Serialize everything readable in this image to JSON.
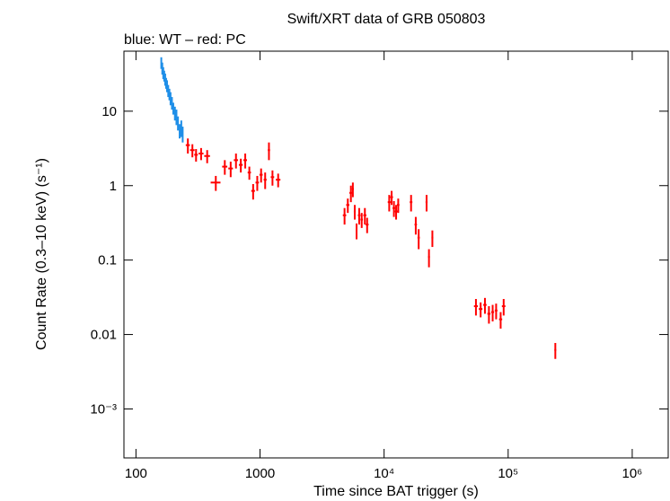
{
  "chart_data": {
    "type": "scatter",
    "title": "Swift/XRT data of GRB 050803",
    "subtitle": "blue: WT – red: PC",
    "x_label": "Time since BAT trigger (s)",
    "y_label": "Count Rate (0.3–10 keV) (s⁻¹)",
    "log_x": true,
    "log_y": true,
    "xlim": [
      80,
      1950000
    ],
    "ylim": [
      0.00022,
      64
    ],
    "xticks": [
      100,
      1000,
      {
        "value": 10000,
        "label": "10⁴"
      },
      {
        "value": 100000,
        "label": "10⁵"
      },
      {
        "value": 1000000,
        "label": "10⁶"
      }
    ],
    "yticks": [
      {
        "value": 0.001,
        "label": "10⁻³"
      },
      0.01,
      0.1,
      1,
      10
    ],
    "series": [
      {
        "name": "WT",
        "color": "#1f8fe8",
        "x": [
          160,
          163,
          166,
          169,
          172,
          175,
          178,
          182,
          186,
          190,
          195,
          200,
          206,
          212,
          218,
          225,
          232,
          238
        ],
        "values": [
          45,
          38,
          33,
          30,
          27,
          24,
          22,
          19,
          17,
          15,
          13,
          11,
          9.5,
          8.5,
          7,
          5.5,
          6,
          5
        ],
        "yerr": [
          8,
          7,
          6,
          5,
          5,
          4,
          4,
          3.5,
          3,
          3,
          2.5,
          2,
          2,
          2,
          1.5,
          1.2,
          1.5,
          1.2
        ]
      },
      {
        "name": "PC",
        "color": "#ff0000",
        "x": [
          262,
          285,
          305,
          335,
          375,
          440,
          520,
          580,
          640,
          700,
          760,
          820,
          880,
          950,
          1020,
          1100,
          1180,
          1260,
          1400,
          4800,
          5100,
          5400,
          5600,
          5800,
          6000,
          6300,
          6600,
          7000,
          7300,
          11000,
          11500,
          12000,
          12500,
          13000,
          16500,
          18000,
          19000,
          22000,
          23000,
          24500,
          55000,
          60000,
          65000,
          70000,
          75000,
          80000,
          87000,
          92000,
          240000
        ],
        "values": [
          3.5,
          3.0,
          2.6,
          2.7,
          2.5,
          1.1,
          1.8,
          1.7,
          2.2,
          1.9,
          2.2,
          1.5,
          0.85,
          1.1,
          1.4,
          1.2,
          3.0,
          1.3,
          1.2,
          0.4,
          0.55,
          0.8,
          0.9,
          0.45,
          0.25,
          0.4,
          0.35,
          0.4,
          0.3,
          0.6,
          0.7,
          0.5,
          0.45,
          0.55,
          0.6,
          0.3,
          0.2,
          0.6,
          0.11,
          0.2,
          0.024,
          0.022,
          0.025,
          0.019,
          0.02,
          0.021,
          0.016,
          0.024,
          0.0062
        ],
        "xerr": [
          10,
          12,
          10,
          15,
          20,
          40,
          25,
          25,
          25,
          25,
          25,
          25,
          30,
          30,
          30,
          30,
          25,
          40,
          60,
          150,
          150,
          150,
          100,
          100,
          100,
          150,
          150,
          200,
          200,
          300,
          300,
          300,
          300,
          300,
          400,
          400,
          400,
          400,
          400,
          400,
          2000,
          2000,
          2000,
          2000,
          2000,
          2000,
          2500,
          3000,
          4000
        ],
        "yerr": [
          0.8,
          0.6,
          0.5,
          0.5,
          0.5,
          0.25,
          0.4,
          0.4,
          0.5,
          0.4,
          0.5,
          0.3,
          0.2,
          0.25,
          0.3,
          0.3,
          0.8,
          0.3,
          0.25,
          0.1,
          0.12,
          0.2,
          0.2,
          0.1,
          0.06,
          0.1,
          0.08,
          0.1,
          0.07,
          0.15,
          0.15,
          0.12,
          0.1,
          0.12,
          0.15,
          0.08,
          0.06,
          0.15,
          0.03,
          0.05,
          0.006,
          0.005,
          0.006,
          0.005,
          0.005,
          0.005,
          0.004,
          0.006,
          0.0015
        ]
      }
    ]
  }
}
